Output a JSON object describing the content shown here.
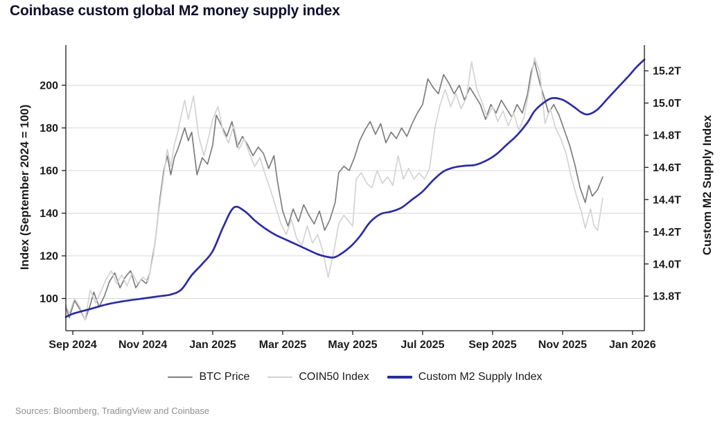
{
  "title": "Coinbase custom global M2 money supply index",
  "source_note": "Sources: Bloomberg, TradingView and Coinbase",
  "colors": {
    "background": "#ffffff",
    "grid": "#d7d7d7",
    "axis": "#1a1a1a",
    "tick_text": "#1a1a1a",
    "title": "#0e0e2c",
    "source": "#8f8f8f",
    "btc": "#7d7d7d",
    "coin50": "#d3d3d3",
    "m2": "#2b2ba3"
  },
  "legend": {
    "items": [
      {
        "label": "BTC Price",
        "color": "#7d7d7d",
        "thickness": 2.5
      },
      {
        "label": "COIN50 Index",
        "color": "#d3d3d3",
        "thickness": 2.5
      },
      {
        "label": "Custom M2 Supply Index",
        "color": "#2b2ba3",
        "thickness": 3.5
      }
    ]
  },
  "chart_data": {
    "type": "line",
    "title": "Coinbase custom global M2 money supply index",
    "x_unit": "months since Sep 2024",
    "x_range": [
      -0.2,
      16.34
    ],
    "grid": "horizontal gridlines at left-axis ticks only",
    "legend_position": "bottom center",
    "x_ticks": [
      {
        "t": 0,
        "label": "Sep 2024"
      },
      {
        "t": 2,
        "label": "Nov 2024"
      },
      {
        "t": 4,
        "label": "Jan 2025"
      },
      {
        "t": 6,
        "label": "Mar 2025"
      },
      {
        "t": 8,
        "label": "May 2025"
      },
      {
        "t": 10,
        "label": "Jul 2025"
      },
      {
        "t": 12,
        "label": "Sep 2025"
      },
      {
        "t": 14,
        "label": "Nov 2025"
      },
      {
        "t": 16,
        "label": "Jan 2026"
      }
    ],
    "left_axis": {
      "label": "Index (September 2024 = 100)",
      "ticks": [
        100,
        120,
        140,
        160,
        180,
        200
      ],
      "range": [
        84.88,
        218.86
      ]
    },
    "right_axis": {
      "label": "Custom M2 Supply Index",
      "tick_values": [
        13.8,
        14.0,
        14.2,
        14.4,
        14.6,
        14.8,
        15.0,
        15.2
      ],
      "tick_labels": [
        "13.8T",
        "14.0T",
        "14.2T",
        "14.4T",
        "14.6T",
        "14.8T",
        "15.0T",
        "15.2T"
      ],
      "range": [
        13.585,
        15.36
      ]
    },
    "series": [
      {
        "name": "BTC Price",
        "axis": "left",
        "color": "#7d7d7d",
        "width": 1.7,
        "smooth": false,
        "points": [
          [
            -0.2,
            96
          ],
          [
            -0.1,
            91
          ],
          [
            0.05,
            99
          ],
          [
            0.2,
            95
          ],
          [
            0.35,
            90
          ],
          [
            0.5,
            97
          ],
          [
            0.6,
            103
          ],
          [
            0.75,
            96
          ],
          [
            0.9,
            101
          ],
          [
            1.05,
            108
          ],
          [
            1.2,
            112
          ],
          [
            1.35,
            105
          ],
          [
            1.5,
            110
          ],
          [
            1.65,
            113
          ],
          [
            1.8,
            105
          ],
          [
            1.95,
            109
          ],
          [
            2.1,
            107
          ],
          [
            2.2,
            112
          ],
          [
            2.35,
            126
          ],
          [
            2.5,
            148
          ],
          [
            2.6,
            160
          ],
          [
            2.7,
            167
          ],
          [
            2.8,
            158
          ],
          [
            2.9,
            166
          ],
          [
            3.0,
            170
          ],
          [
            3.1,
            175
          ],
          [
            3.2,
            180
          ],
          [
            3.3,
            174
          ],
          [
            3.4,
            178
          ],
          [
            3.55,
            158
          ],
          [
            3.7,
            166
          ],
          [
            3.85,
            163
          ],
          [
            4.0,
            172
          ],
          [
            4.1,
            186
          ],
          [
            4.25,
            181
          ],
          [
            4.4,
            176
          ],
          [
            4.55,
            183
          ],
          [
            4.7,
            171
          ],
          [
            4.85,
            176
          ],
          [
            5.0,
            172
          ],
          [
            5.15,
            167
          ],
          [
            5.3,
            171
          ],
          [
            5.45,
            168
          ],
          [
            5.6,
            161
          ],
          [
            5.75,
            167
          ],
          [
            5.85,
            155
          ],
          [
            6.0,
            141
          ],
          [
            6.15,
            134
          ],
          [
            6.3,
            142
          ],
          [
            6.45,
            136
          ],
          [
            6.6,
            144
          ],
          [
            6.75,
            139
          ],
          [
            6.9,
            135
          ],
          [
            7.05,
            141
          ],
          [
            7.2,
            132
          ],
          [
            7.35,
            137
          ],
          [
            7.5,
            145
          ],
          [
            7.6,
            159
          ],
          [
            7.75,
            162
          ],
          [
            7.9,
            160
          ],
          [
            8.05,
            166
          ],
          [
            8.2,
            174
          ],
          [
            8.35,
            179
          ],
          [
            8.5,
            183
          ],
          [
            8.65,
            177
          ],
          [
            8.8,
            182
          ],
          [
            8.95,
            173
          ],
          [
            9.1,
            178
          ],
          [
            9.25,
            175
          ],
          [
            9.4,
            180
          ],
          [
            9.55,
            176
          ],
          [
            9.7,
            182
          ],
          [
            9.85,
            187
          ],
          [
            10.0,
            191
          ],
          [
            10.15,
            203
          ],
          [
            10.3,
            199
          ],
          [
            10.45,
            196
          ],
          [
            10.6,
            205
          ],
          [
            10.75,
            201
          ],
          [
            10.9,
            196
          ],
          [
            11.05,
            200
          ],
          [
            11.2,
            193
          ],
          [
            11.35,
            199
          ],
          [
            11.5,
            195
          ],
          [
            11.65,
            191
          ],
          [
            11.8,
            184
          ],
          [
            11.95,
            191
          ],
          [
            12.1,
            187
          ],
          [
            12.25,
            193
          ],
          [
            12.4,
            189
          ],
          [
            12.55,
            185
          ],
          [
            12.7,
            191
          ],
          [
            12.85,
            187
          ],
          [
            13.0,
            196
          ],
          [
            13.1,
            206
          ],
          [
            13.2,
            211
          ],
          [
            13.35,
            201
          ],
          [
            13.5,
            193
          ],
          [
            13.6,
            187
          ],
          [
            13.75,
            191
          ],
          [
            13.9,
            186
          ],
          [
            14.05,
            179
          ],
          [
            14.2,
            172
          ],
          [
            14.35,
            163
          ],
          [
            14.5,
            152
          ],
          [
            14.65,
            145
          ],
          [
            14.75,
            153
          ],
          [
            14.85,
            148
          ],
          [
            15.0,
            151
          ],
          [
            15.15,
            157
          ]
        ]
      },
      {
        "name": "COIN50 Index",
        "axis": "left",
        "color": "#d3d3d3",
        "width": 1.7,
        "smooth": false,
        "points": [
          [
            -0.2,
            97
          ],
          [
            -0.1,
            93
          ],
          [
            0.05,
            100
          ],
          [
            0.2,
            96
          ],
          [
            0.35,
            90
          ],
          [
            0.5,
            104
          ],
          [
            0.65,
            98
          ],
          [
            0.8,
            103
          ],
          [
            0.95,
            109
          ],
          [
            1.1,
            113
          ],
          [
            1.25,
            107
          ],
          [
            1.4,
            111
          ],
          [
            1.55,
            106
          ],
          [
            1.7,
            112
          ],
          [
            1.85,
            107
          ],
          [
            2.0,
            110
          ],
          [
            2.15,
            108
          ],
          [
            2.3,
            120
          ],
          [
            2.45,
            140
          ],
          [
            2.6,
            158
          ],
          [
            2.7,
            170
          ],
          [
            2.8,
            162
          ],
          [
            2.9,
            172
          ],
          [
            3.0,
            178
          ],
          [
            3.1,
            186
          ],
          [
            3.2,
            193
          ],
          [
            3.3,
            184
          ],
          [
            3.45,
            195
          ],
          [
            3.6,
            176
          ],
          [
            3.75,
            167
          ],
          [
            3.9,
            177
          ],
          [
            4.0,
            184
          ],
          [
            4.15,
            190
          ],
          [
            4.3,
            178
          ],
          [
            4.45,
            173
          ],
          [
            4.6,
            181
          ],
          [
            4.75,
            170
          ],
          [
            4.9,
            175
          ],
          [
            5.05,
            168
          ],
          [
            5.2,
            162
          ],
          [
            5.35,
            166
          ],
          [
            5.5,
            158
          ],
          [
            5.65,
            151
          ],
          [
            5.8,
            143
          ],
          [
            5.95,
            135
          ],
          [
            6.1,
            130
          ],
          [
            6.25,
            137
          ],
          [
            6.4,
            128
          ],
          [
            6.55,
            125
          ],
          [
            6.7,
            134
          ],
          [
            6.85,
            126
          ],
          [
            7.0,
            130
          ],
          [
            7.15,
            122
          ],
          [
            7.3,
            110
          ],
          [
            7.45,
            121
          ],
          [
            7.6,
            135
          ],
          [
            7.75,
            139
          ],
          [
            7.9,
            136
          ],
          [
            8.0,
            134
          ],
          [
            8.1,
            156
          ],
          [
            8.25,
            159
          ],
          [
            8.4,
            154
          ],
          [
            8.55,
            152
          ],
          [
            8.7,
            160
          ],
          [
            8.85,
            154
          ],
          [
            9.0,
            157
          ],
          [
            9.15,
            153
          ],
          [
            9.3,
            167
          ],
          [
            9.45,
            156
          ],
          [
            9.6,
            161
          ],
          [
            9.75,
            156
          ],
          [
            9.9,
            159
          ],
          [
            10.05,
            156
          ],
          [
            10.2,
            161
          ],
          [
            10.35,
            180
          ],
          [
            10.5,
            191
          ],
          [
            10.65,
            198
          ],
          [
            10.8,
            190
          ],
          [
            10.95,
            196
          ],
          [
            11.1,
            189
          ],
          [
            11.25,
            194
          ],
          [
            11.4,
            211
          ],
          [
            11.55,
            198
          ],
          [
            11.7,
            192
          ],
          [
            11.85,
            185
          ],
          [
            12.0,
            190
          ],
          [
            12.15,
            183
          ],
          [
            12.3,
            188
          ],
          [
            12.45,
            181
          ],
          [
            12.6,
            187
          ],
          [
            12.75,
            179
          ],
          [
            12.9,
            185
          ],
          [
            13.05,
            198
          ],
          [
            13.2,
            213
          ],
          [
            13.35,
            206
          ],
          [
            13.5,
            182
          ],
          [
            13.65,
            189
          ],
          [
            13.8,
            180
          ],
          [
            13.95,
            175
          ],
          [
            14.1,
            168
          ],
          [
            14.25,
            157
          ],
          [
            14.4,
            148
          ],
          [
            14.55,
            140
          ],
          [
            14.65,
            133
          ],
          [
            14.8,
            142
          ],
          [
            14.9,
            134
          ],
          [
            15.0,
            132
          ],
          [
            15.15,
            147
          ]
        ]
      },
      {
        "name": "Custom M2 Supply Index",
        "axis": "right",
        "color": "#2b2ba3",
        "width": 2.7,
        "smooth": true,
        "points": [
          [
            -0.2,
            13.67
          ],
          [
            0,
            13.69
          ],
          [
            0.5,
            13.72
          ],
          [
            1,
            13.75
          ],
          [
            1.5,
            13.77
          ],
          [
            2,
            13.785
          ],
          [
            2.5,
            13.8
          ],
          [
            2.8,
            13.81
          ],
          [
            3.1,
            13.84
          ],
          [
            3.4,
            13.93
          ],
          [
            3.7,
            14.0
          ],
          [
            4.0,
            14.08
          ],
          [
            4.3,
            14.23
          ],
          [
            4.6,
            14.35
          ],
          [
            4.9,
            14.33
          ],
          [
            5.2,
            14.27
          ],
          [
            5.5,
            14.22
          ],
          [
            5.8,
            14.18
          ],
          [
            6.1,
            14.15
          ],
          [
            6.4,
            14.12
          ],
          [
            6.7,
            14.09
          ],
          [
            7.0,
            14.06
          ],
          [
            7.25,
            14.045
          ],
          [
            7.45,
            14.04
          ],
          [
            7.65,
            14.06
          ],
          [
            7.95,
            14.11
          ],
          [
            8.2,
            14.17
          ],
          [
            8.5,
            14.26
          ],
          [
            8.8,
            14.31
          ],
          [
            9.1,
            14.325
          ],
          [
            9.4,
            14.35
          ],
          [
            9.7,
            14.4
          ],
          [
            10.0,
            14.45
          ],
          [
            10.3,
            14.52
          ],
          [
            10.6,
            14.575
          ],
          [
            10.9,
            14.6
          ],
          [
            11.2,
            14.61
          ],
          [
            11.5,
            14.615
          ],
          [
            11.8,
            14.64
          ],
          [
            12.1,
            14.68
          ],
          [
            12.4,
            14.74
          ],
          [
            12.7,
            14.8
          ],
          [
            13.0,
            14.88
          ],
          [
            13.2,
            14.95
          ],
          [
            13.45,
            15.0
          ],
          [
            13.7,
            15.03
          ],
          [
            14.0,
            15.02
          ],
          [
            14.3,
            14.98
          ],
          [
            14.55,
            14.94
          ],
          [
            14.75,
            14.93
          ],
          [
            15.0,
            14.96
          ],
          [
            15.3,
            15.03
          ],
          [
            15.6,
            15.1
          ],
          [
            15.9,
            15.17
          ],
          [
            16.1,
            15.22
          ],
          [
            16.34,
            15.27
          ]
        ]
      }
    ]
  }
}
